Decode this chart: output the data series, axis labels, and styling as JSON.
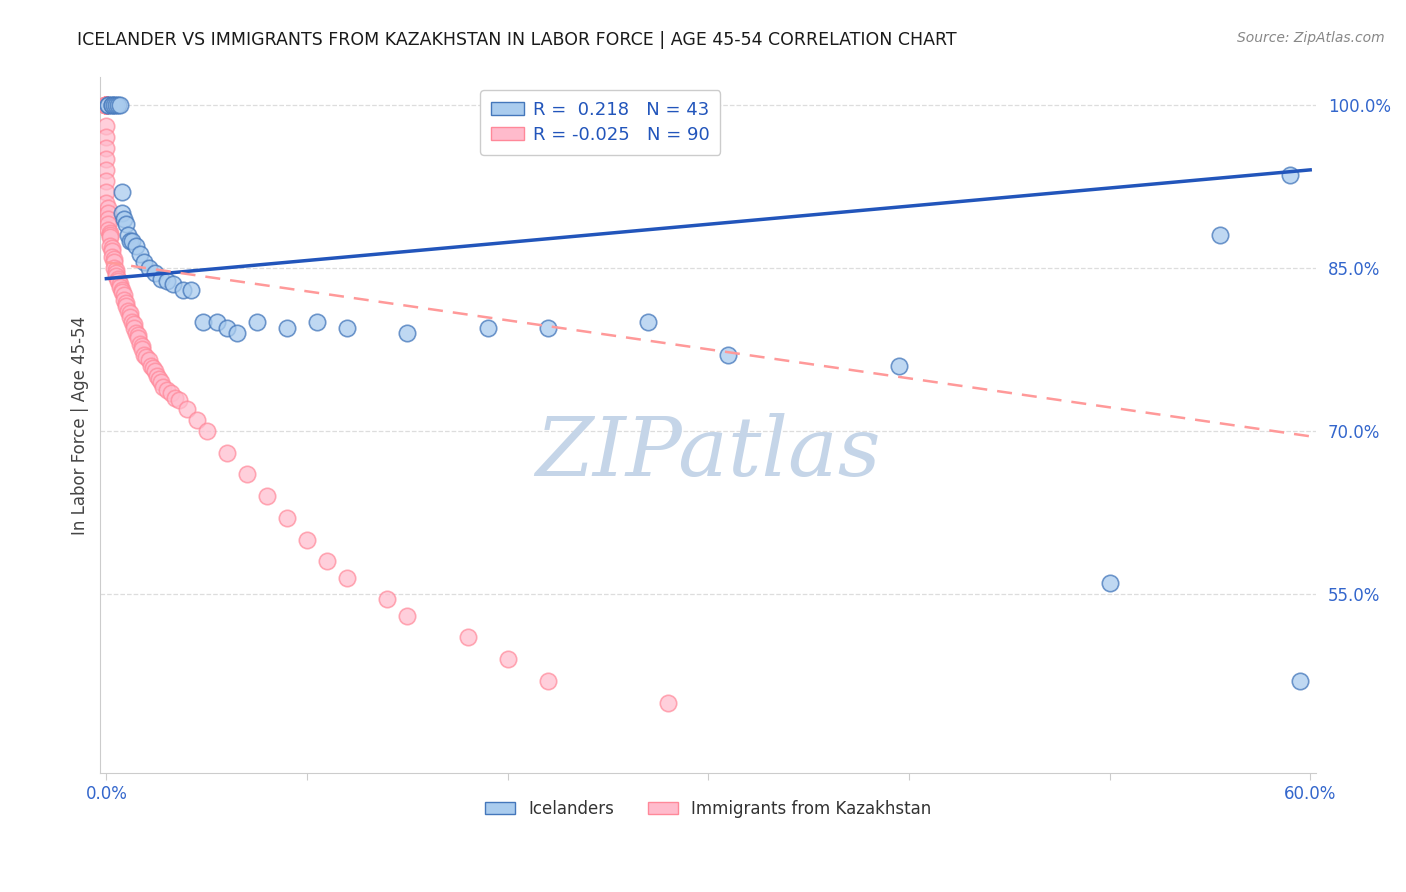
{
  "title": "ICELANDER VS IMMIGRANTS FROM KAZAKHSTAN IN LABOR FORCE | AGE 45-54 CORRELATION CHART",
  "source": "Source: ZipAtlas.com",
  "ylabel": "In Labor Force | Age 45-54",
  "xlim": [
    -0.003,
    0.603
  ],
  "ylim": [
    0.385,
    1.025
  ],
  "xtick_positions": [
    0.0,
    0.1,
    0.2,
    0.3,
    0.4,
    0.5,
    0.6
  ],
  "xticklabels": [
    "0.0%",
    "",
    "",
    "",
    "",
    "",
    "60.0%"
  ],
  "ytick_right_positions": [
    0.55,
    0.7,
    0.85,
    1.0
  ],
  "yticklabels_right": [
    "55.0%",
    "70.0%",
    "85.0%",
    "100.0%"
  ],
  "blue_R": 0.218,
  "blue_N": 43,
  "pink_R": -0.025,
  "pink_N": 90,
  "blue_face_color": "#AACCEE",
  "blue_edge_color": "#4477BB",
  "pink_face_color": "#FFBBCC",
  "pink_edge_color": "#FF8899",
  "blue_line_color": "#2255BB",
  "pink_line_color": "#FF9999",
  "watermark": "ZIPatlas",
  "watermark_color": "#C5D5E8",
  "legend_label_blue": "Icelanders",
  "legend_label_pink": "Immigrants from Kazakhstan",
  "tick_color": "#3366CC",
  "grid_color": "#DDDDDD",
  "title_color": "#1a1a1a",
  "source_color": "#888888",
  "blue_x": [
    0.001,
    0.001,
    0.003,
    0.003,
    0.004,
    0.005,
    0.006,
    0.007,
    0.008,
    0.008,
    0.009,
    0.01,
    0.011,
    0.012,
    0.013,
    0.015,
    0.017,
    0.019,
    0.021,
    0.024,
    0.027,
    0.03,
    0.033,
    0.038,
    0.042,
    0.048,
    0.055,
    0.06,
    0.065,
    0.075,
    0.09,
    0.105,
    0.12,
    0.15,
    0.19,
    0.22,
    0.27,
    0.31,
    0.395,
    0.5,
    0.555,
    0.59,
    0.595
  ],
  "blue_y": [
    1.0,
    1.0,
    1.0,
    1.0,
    1.0,
    1.0,
    1.0,
    1.0,
    0.92,
    0.9,
    0.895,
    0.89,
    0.88,
    0.875,
    0.875,
    0.87,
    0.863,
    0.855,
    0.85,
    0.845,
    0.84,
    0.838,
    0.835,
    0.83,
    0.83,
    0.8,
    0.8,
    0.795,
    0.79,
    0.8,
    0.795,
    0.8,
    0.795,
    0.79,
    0.795,
    0.795,
    0.8,
    0.77,
    0.76,
    0.56,
    0.88,
    0.935,
    0.47
  ],
  "pink_x": [
    0.0,
    0.0,
    0.0,
    0.0,
    0.0,
    0.0,
    0.0,
    0.0,
    0.0,
    0.0,
    0.0,
    0.0,
    0.0,
    0.0,
    0.0,
    0.0,
    0.0,
    0.0,
    0.0,
    0.0,
    0.001,
    0.001,
    0.001,
    0.001,
    0.001,
    0.002,
    0.002,
    0.002,
    0.002,
    0.003,
    0.003,
    0.003,
    0.004,
    0.004,
    0.004,
    0.005,
    0.005,
    0.005,
    0.006,
    0.006,
    0.007,
    0.007,
    0.008,
    0.008,
    0.009,
    0.009,
    0.01,
    0.01,
    0.011,
    0.012,
    0.012,
    0.013,
    0.014,
    0.014,
    0.015,
    0.016,
    0.016,
    0.017,
    0.018,
    0.018,
    0.019,
    0.02,
    0.021,
    0.022,
    0.023,
    0.024,
    0.025,
    0.026,
    0.027,
    0.028,
    0.03,
    0.032,
    0.034,
    0.036,
    0.04,
    0.045,
    0.05,
    0.06,
    0.07,
    0.08,
    0.09,
    0.1,
    0.11,
    0.12,
    0.14,
    0.15,
    0.18,
    0.2,
    0.22,
    0.28
  ],
  "pink_y": [
    1.0,
    1.0,
    1.0,
    1.0,
    1.0,
    1.0,
    1.0,
    1.0,
    1.0,
    1.0,
    1.0,
    1.0,
    0.98,
    0.97,
    0.96,
    0.95,
    0.94,
    0.93,
    0.92,
    0.91,
    0.905,
    0.9,
    0.895,
    0.89,
    0.885,
    0.882,
    0.88,
    0.878,
    0.87,
    0.868,
    0.865,
    0.86,
    0.858,
    0.855,
    0.85,
    0.848,
    0.845,
    0.842,
    0.84,
    0.838,
    0.835,
    0.832,
    0.83,
    0.828,
    0.825,
    0.82,
    0.818,
    0.815,
    0.81,
    0.808,
    0.805,
    0.8,
    0.798,
    0.795,
    0.79,
    0.788,
    0.785,
    0.78,
    0.778,
    0.775,
    0.77,
    0.768,
    0.765,
    0.76,
    0.758,
    0.755,
    0.75,
    0.748,
    0.745,
    0.74,
    0.738,
    0.735,
    0.73,
    0.728,
    0.72,
    0.71,
    0.7,
    0.68,
    0.66,
    0.64,
    0.62,
    0.6,
    0.58,
    0.565,
    0.545,
    0.53,
    0.51,
    0.49,
    0.47,
    0.45
  ],
  "blue_trend_x": [
    0.0,
    0.6
  ],
  "blue_trend_y": [
    0.84,
    0.94
  ],
  "pink_trend_x": [
    0.0,
    0.6
  ],
  "pink_trend_y": [
    0.855,
    0.695
  ]
}
